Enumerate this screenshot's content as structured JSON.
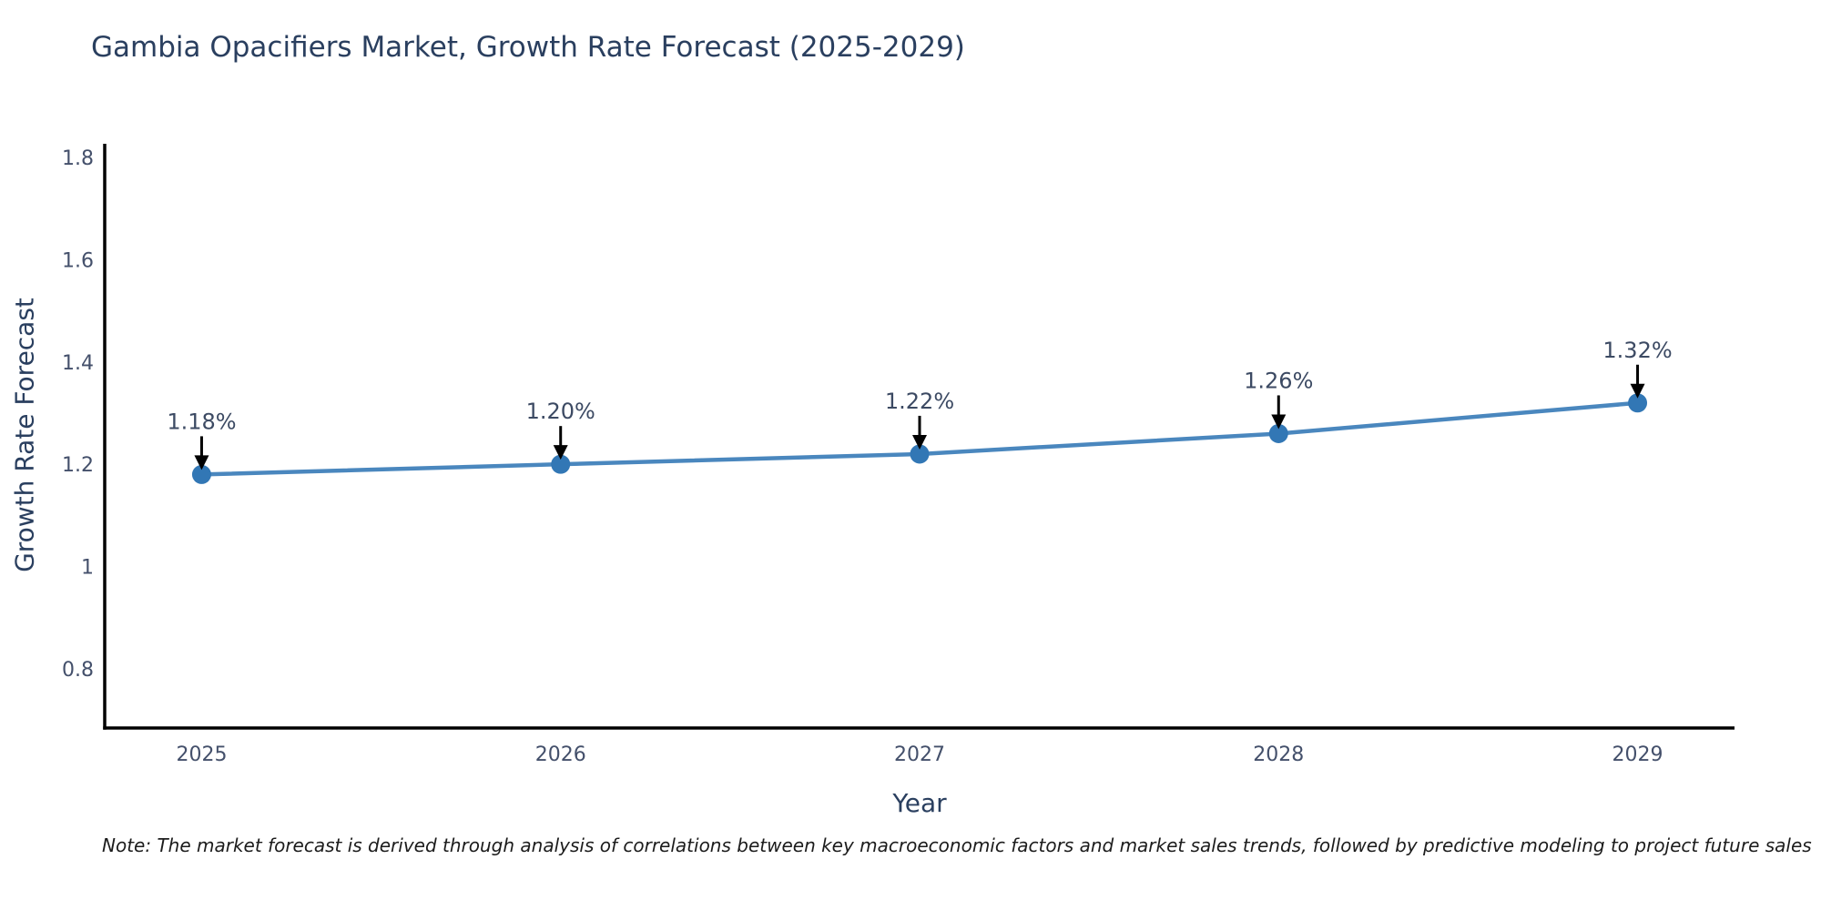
{
  "page": {
    "title": "Gambia Opacifiers Market, Growth Rate Forecast (2025-2029)",
    "note": "Note: The market forecast is derived through analysis of correlations between key macroeconomic factors and market sales trends, followed by predictive modeling to project future sales"
  },
  "chart_data": {
    "type": "line",
    "title": "Gambia Opacifiers Market, Growth Rate Forecast (2025-2029)",
    "xlabel": "Year",
    "ylabel": "Growth Rate Forecast",
    "x": [
      2025,
      2026,
      2027,
      2028,
      2029
    ],
    "series": [
      {
        "name": "Growth Rate Forecast",
        "values": [
          1.18,
          1.2,
          1.22,
          1.26,
          1.32
        ],
        "labels": [
          "1.18%",
          "1.20%",
          "1.22%",
          "1.26%",
          "1.32%"
        ]
      }
    ],
    "xtick_labels": [
      "2025",
      "2026",
      "2027",
      "2028",
      "2029"
    ],
    "ytick_values": [
      0.8,
      1,
      1.2,
      1.4,
      1.6,
      1.8
    ],
    "ytick_labels": [
      "0.8",
      "1",
      "1.2",
      "1.4",
      "1.6",
      "1.8"
    ],
    "xlim": [
      2024.73,
      2029.27
    ],
    "ylim": [
      0.684,
      1.827
    ],
    "grid": false,
    "legend_position": "none",
    "annotation_style": "label-with-down-arrow",
    "colors": {
      "line": "#4a87be",
      "marker": "#3277b5",
      "axis": "#000000",
      "arrow": "#000000",
      "title_text": "#2a3f5f",
      "tick_text": "#44506b",
      "annotation_text": "#3c4a63",
      "background": "#ffffff"
    }
  }
}
